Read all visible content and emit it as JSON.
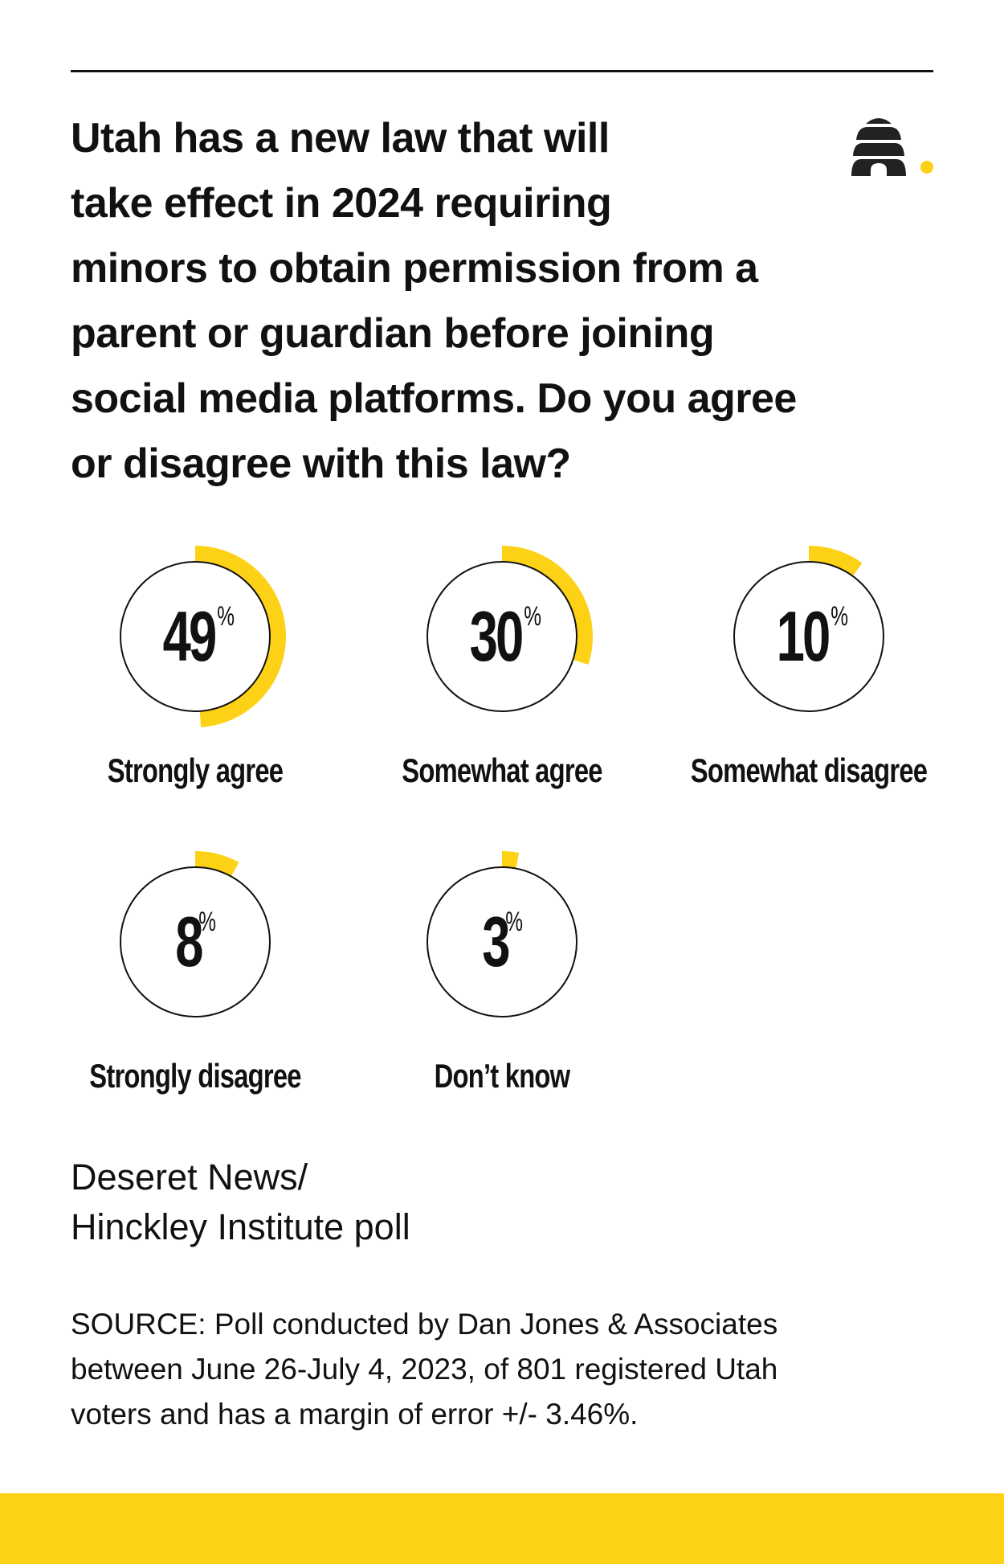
{
  "header": {
    "question": "Utah has a new law that will\ntake effect in 2024 requiring\nminors to obtain permission from a\nparent or guardian before joining\nsocial media platforms. Do you agree\nor disagree with this law?",
    "logo_icon": "beehive-icon"
  },
  "colors": {
    "accent": "#fcd116",
    "text": "#111111",
    "background": "#ffffff",
    "ring": "#111111"
  },
  "chart_data": {
    "type": "donut",
    "title": "Utah has a new law that will take effect in 2024 requiring minors to obtain permission from a parent or guardian before joining social media platforms. Do you agree or disagree with this law?",
    "categories": [
      "Strongly agree",
      "Somewhat agree",
      "Somewhat disagree",
      "Strongly disagree",
      "Don’t know"
    ],
    "values": [
      49,
      30,
      10,
      8,
      3
    ],
    "unit": "%",
    "layout": "grid 3 + 2, each value shown as a radial arc starting at 12 o'clock",
    "items": [
      {
        "label": "Strongly agree",
        "value": 49,
        "display": "49",
        "unit": "%"
      },
      {
        "label": "Somewhat agree",
        "value": 30,
        "display": "30",
        "unit": "%"
      },
      {
        "label": "Somewhat disagree",
        "value": 10,
        "display": "10",
        "unit": "%"
      },
      {
        "label": "Strongly disagree",
        "value": 8,
        "display": "8",
        "unit": "%"
      },
      {
        "label": "Don’t know",
        "value": 3,
        "display": "3",
        "unit": "%"
      }
    ]
  },
  "footer": {
    "poll_name": "Deseret News/\nHinckley Institute poll",
    "source": "SOURCE: Poll conducted by Dan Jones & Associates\nbetween June 26-July 4, 2023, of 801 registered Utah\nvoters and has a margin of error +/- 3.46%."
  }
}
